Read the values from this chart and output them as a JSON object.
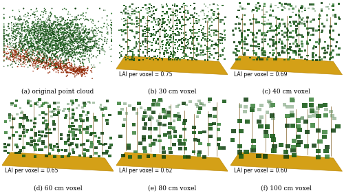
{
  "figsize": [
    5.0,
    2.81
  ],
  "dpi": 100,
  "background_color": "#ffffff",
  "subplots": [
    {
      "label": "(a) original point cloud",
      "lai_text": "",
      "has_lai": false
    },
    {
      "label": "(b) 30 cm voxel",
      "lai_text": "LAI per voxel = 0.75",
      "has_lai": true
    },
    {
      "label": "(c) 40 cm voxel",
      "lai_text": "LAI per voxel = 0.69",
      "has_lai": true
    },
    {
      "label": "(d) 60 cm voxel",
      "lai_text": "LAI per voxel = 0.65",
      "has_lai": true
    },
    {
      "label": "(e) 80 cm voxel",
      "lai_text": "LAI per voxel = 0.62",
      "has_lai": true
    },
    {
      "label": "(f) 100 cm voxel",
      "lai_text": "LAI per voxel = 0.60",
      "has_lai": true
    }
  ],
  "dark_green": "#1a5c1a",
  "medium_green": "#2d7a2d",
  "light_green": "#4a9a4a",
  "very_dark_green": "#0d3d0d",
  "pale_green": "#5a8a5a",
  "ground_color": "#d4a017",
  "ground_dark": "#b8860b",
  "ground_light": "#e8b820",
  "red_brown": "#8b2500",
  "red_brown2": "#a03010",
  "trunk_color": "#6b4400",
  "text_color": "#000000",
  "label_fontsize": 6.5,
  "lai_fontsize": 5.5,
  "voxel_sizes": [
    1.0,
    1.3,
    1.7,
    2.2,
    2.8
  ]
}
